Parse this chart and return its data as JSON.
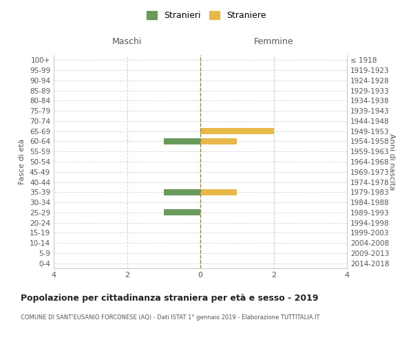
{
  "age_groups": [
    "100+",
    "95-99",
    "90-94",
    "85-89",
    "80-84",
    "75-79",
    "70-74",
    "65-69",
    "60-64",
    "55-59",
    "50-54",
    "45-49",
    "40-44",
    "35-39",
    "30-34",
    "25-29",
    "20-24",
    "15-19",
    "10-14",
    "5-9",
    "0-4"
  ],
  "birth_years": [
    "≤ 1918",
    "1919-1923",
    "1924-1928",
    "1929-1933",
    "1934-1938",
    "1939-1943",
    "1944-1948",
    "1949-1953",
    "1954-1958",
    "1959-1963",
    "1964-1968",
    "1969-1973",
    "1974-1978",
    "1979-1983",
    "1984-1988",
    "1989-1993",
    "1994-1998",
    "1999-2003",
    "2004-2008",
    "2009-2013",
    "2014-2018"
  ],
  "males": [
    0,
    0,
    0,
    0,
    0,
    0,
    0,
    0,
    -1,
    0,
    0,
    0,
    0,
    -1,
    0,
    -1,
    0,
    0,
    0,
    0,
    0
  ],
  "females": [
    0,
    0,
    0,
    0,
    0,
    0,
    0,
    2,
    1,
    0,
    0,
    0,
    0,
    1,
    0,
    0,
    0,
    0,
    0,
    0,
    0
  ],
  "male_color": "#6a9a5b",
  "female_color": "#e8b84b",
  "title": "Popolazione per cittadinanza straniera per età e sesso - 2019",
  "subtitle": "COMUNE DI SANT'EUSANIO FORCONESE (AQ) - Dati ISTAT 1° gennaio 2019 - Elaborazione TUTTITALIA.IT",
  "legend_male": "Stranieri",
  "legend_female": "Straniere",
  "xlabel_left": "Maschi",
  "xlabel_right": "Femmine",
  "ylabel_left": "Fasce di età",
  "ylabel_right": "Anni di nascita",
  "xlim": [
    -4,
    4
  ],
  "xticks": [
    -4,
    -2,
    0,
    2,
    4
  ],
  "xticklabels": [
    "4",
    "2",
    "0",
    "2",
    "4"
  ],
  "background_color": "#ffffff",
  "grid_color": "#cccccc",
  "center_line_color": "#8b8b40"
}
